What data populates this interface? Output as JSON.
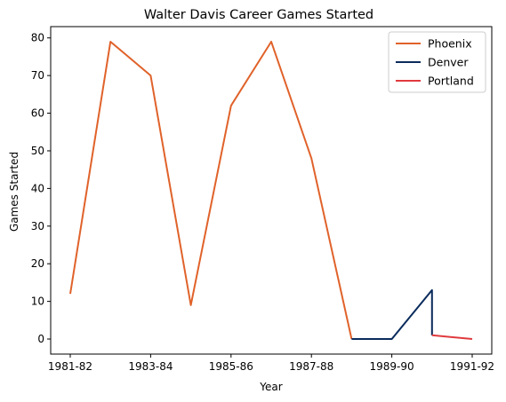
{
  "chart_data": {
    "type": "line",
    "title": "Walter Davis  Career Games Started",
    "xlabel": "Year",
    "ylabel": "Games Started",
    "x_domain": [
      0,
      10
    ],
    "ylim": [
      -4,
      83
    ],
    "x_ticks": [
      {
        "pos": 0,
        "label": "1981-82"
      },
      {
        "pos": 2,
        "label": "1983-84"
      },
      {
        "pos": 4,
        "label": "1985-86"
      },
      {
        "pos": 6,
        "label": "1987-88"
      },
      {
        "pos": 8,
        "label": "1989-90"
      },
      {
        "pos": 10,
        "label": "1991-92"
      }
    ],
    "y_ticks": [
      0,
      10,
      20,
      30,
      40,
      50,
      60,
      70,
      80
    ],
    "grid": false,
    "legend_position": "top-right",
    "series": [
      {
        "name": "Phoenix",
        "color": "#e0622a",
        "points": [
          [
            0,
            12
          ],
          [
            1,
            79
          ],
          [
            2,
            70
          ],
          [
            3,
            9
          ],
          [
            4,
            62
          ],
          [
            5,
            79
          ],
          [
            6,
            48
          ],
          [
            7,
            0
          ]
        ]
      },
      {
        "name": "Denver",
        "color": "#0a2b5c",
        "points": [
          [
            7,
            0
          ],
          [
            8,
            0
          ],
          [
            9,
            13
          ],
          [
            9,
            1
          ]
        ]
      },
      {
        "name": "Portland",
        "color": "#e03a3e",
        "points": [
          [
            9,
            1
          ],
          [
            10,
            0
          ]
        ]
      }
    ]
  }
}
